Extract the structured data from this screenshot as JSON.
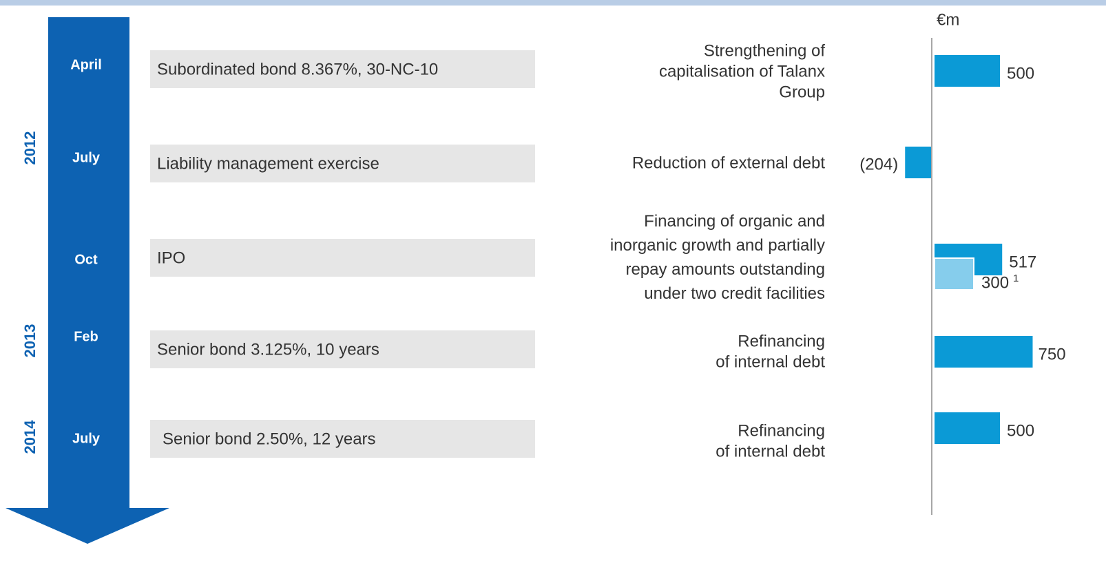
{
  "years": [
    "2012",
    "2013",
    "2014"
  ],
  "events": [
    {
      "month": "April",
      "instrument": "Subordinated bond 8.367%, 30-NC-10"
    },
    {
      "month": "July",
      "instrument": "Liability management exercise"
    },
    {
      "month": "Oct",
      "instrument": "IPO"
    },
    {
      "month": "Feb",
      "instrument": "Senior bond 3.125%, 10 years"
    },
    {
      "month": "July",
      "instrument": "Senior bond 2.50%, 12 years"
    }
  ],
  "chart_data": {
    "type": "bar",
    "orientation": "horizontal",
    "unit": "€m",
    "categories": [
      [
        "Strengthening of",
        "capitalisation of Talanx",
        "Group"
      ],
      [
        "Reduction of external debt"
      ],
      [
        "Financing of organic and",
        "inorganic growth and partially",
        "repay amounts outstanding",
        "under two credit facilities"
      ],
      [
        "Refinancing",
        "of internal debt"
      ],
      [
        "Refinancing",
        "of internal debt"
      ]
    ],
    "series": [
      {
        "color": "#0b9ad6",
        "values": [
          500,
          -204,
          517,
          750,
          500
        ],
        "value_labels": [
          "500",
          "(204)",
          "517",
          "750",
          "500"
        ]
      },
      {
        "color": "#86cdec",
        "values": [
          null,
          null,
          300,
          null,
          null
        ],
        "value_labels": [
          null,
          null,
          "300",
          null,
          null
        ],
        "footnote": "1"
      }
    ],
    "xlim": [
      -250,
      1000
    ]
  }
}
